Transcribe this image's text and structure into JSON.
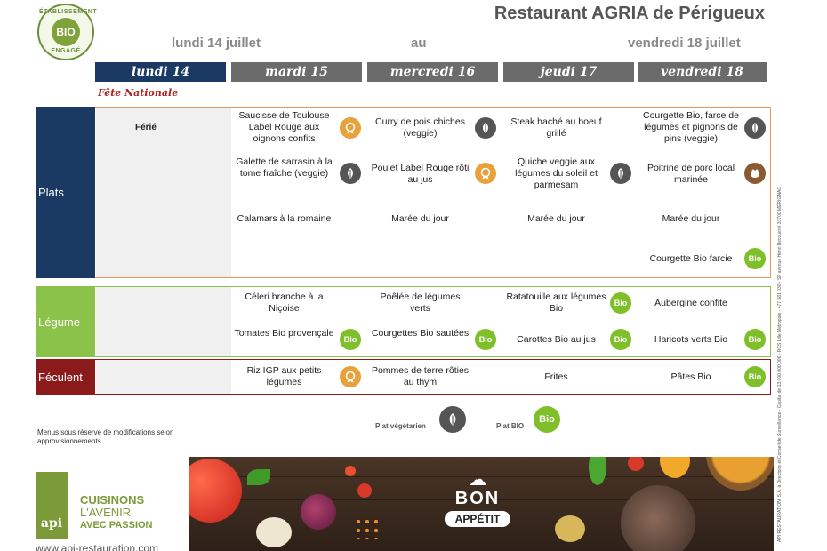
{
  "header": {
    "logo_top": "ÉTABLISSEMENT",
    "logo_center": "BIO",
    "logo_bottom": "ENGAGÉ",
    "title": "Restaurant AGRIA de Périgueux",
    "date_from": "lundi 14 juillet",
    "date_au": "au",
    "date_to": "vendredi 18 juillet"
  },
  "days": [
    "lundi 14",
    "mardi 15",
    "mercredi 16",
    "jeudi 17",
    "vendredi 18"
  ],
  "fete": "Fête Nationale",
  "rows": {
    "plats": "Plats",
    "legume": "Légume",
    "feculent": "Féculent"
  },
  "ferie": "Férié",
  "plats": {
    "mardi": [
      "Saucisse de Toulouse Label Rouge aux oignons confits",
      "Galette de sarrasin à la tome fraîche (veggie)",
      "Calamars à la romaine"
    ],
    "mercredi": [
      "Curry de pois chiches (veggie)",
      "Poulet Label Rouge rôti au jus",
      "Marée du jour"
    ],
    "jeudi": [
      "Steak haché au boeuf grillé",
      "Quiche veggie aux légumes du soleil et parmesam",
      "Marée du jour"
    ],
    "vendredi": [
      "Courgette Bio, farce de légumes et pignons de pins (veggie)",
      "Poitrine de porc local marinée",
      "Marée du jour",
      "Courgette Bio farcie"
    ]
  },
  "legume": {
    "mardi": [
      "Céleri branche à la Niçoise",
      "Tomates Bio provençale"
    ],
    "mercredi": [
      "Poêlée de légumes verts",
      "Courgettes Bio sautées"
    ],
    "jeudi": [
      "Ratatouille aux légumes Bio",
      "Carottes Bio au jus"
    ],
    "vendredi": [
      "Aubergine confite",
      "Haricots verts Bio"
    ]
  },
  "feculent": {
    "mardi": "Riz IGP aux petits légumes",
    "mercredi": "Pommes de terre rôties au thym",
    "jeudi": "Frites",
    "vendredi": "Pâtes Bio"
  },
  "badges": {
    "bio_text": "Bio"
  },
  "legend": {
    "veg": "Plat végétarien",
    "bio": "Plat BIO"
  },
  "note": "Menus sous réserve de modifications selon approvisionnements.",
  "footer": {
    "api": "api",
    "slogan_1": "CUISINONS",
    "slogan_2": "L'AVENIR",
    "slogan_3": "AVEC PASSION",
    "website": "www.api-restauration.com",
    "bon": "BON",
    "appetit": "APPÉTIT",
    "side_text": "API RESTAURATION, S.A. à Directoire et Conseil de Surveillance - Capital de 13.000.000,00€ - RCS Lille Métropole - 477 581 030 - SF avenue Henri Becquerel 33700 MÉRIGNAC"
  },
  "colors": {
    "navy": "#1a3a63",
    "grey_header": "#6b6b6b",
    "green": "#8bc34a",
    "burgundy": "#8b1a1a",
    "bio_green": "#7fbf2a",
    "label_orange": "#e8a23c"
  }
}
